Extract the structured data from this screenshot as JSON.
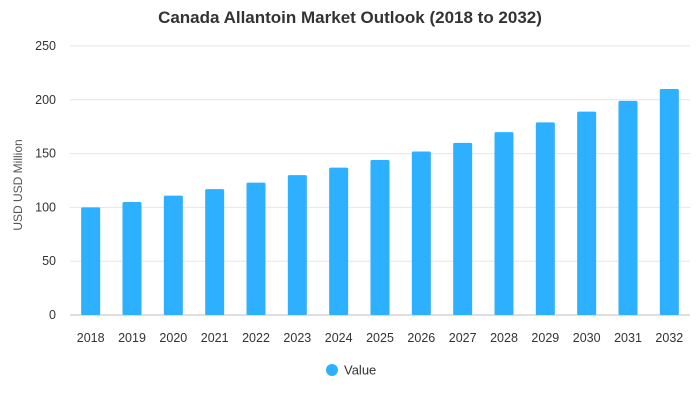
{
  "chart_data": {
    "type": "bar",
    "title": "Canada Allantoin Market Outlook (2018 to 2032)",
    "xlabel": "",
    "ylabel": "USD USD Million",
    "ylim": [
      0,
      250
    ],
    "yticks": [
      0,
      50,
      100,
      150,
      200,
      250
    ],
    "grid": true,
    "legend_position": "bottom",
    "categories": [
      "2018",
      "2019",
      "2020",
      "2021",
      "2022",
      "2023",
      "2024",
      "2025",
      "2026",
      "2027",
      "2028",
      "2029",
      "2030",
      "2031",
      "2032"
    ],
    "series": [
      {
        "name": "Value",
        "color": "#2db0ff",
        "values": [
          100,
          105,
          111,
          117,
          123,
          130,
          137,
          144,
          152,
          160,
          170,
          179,
          189,
          199,
          210
        ]
      }
    ]
  }
}
